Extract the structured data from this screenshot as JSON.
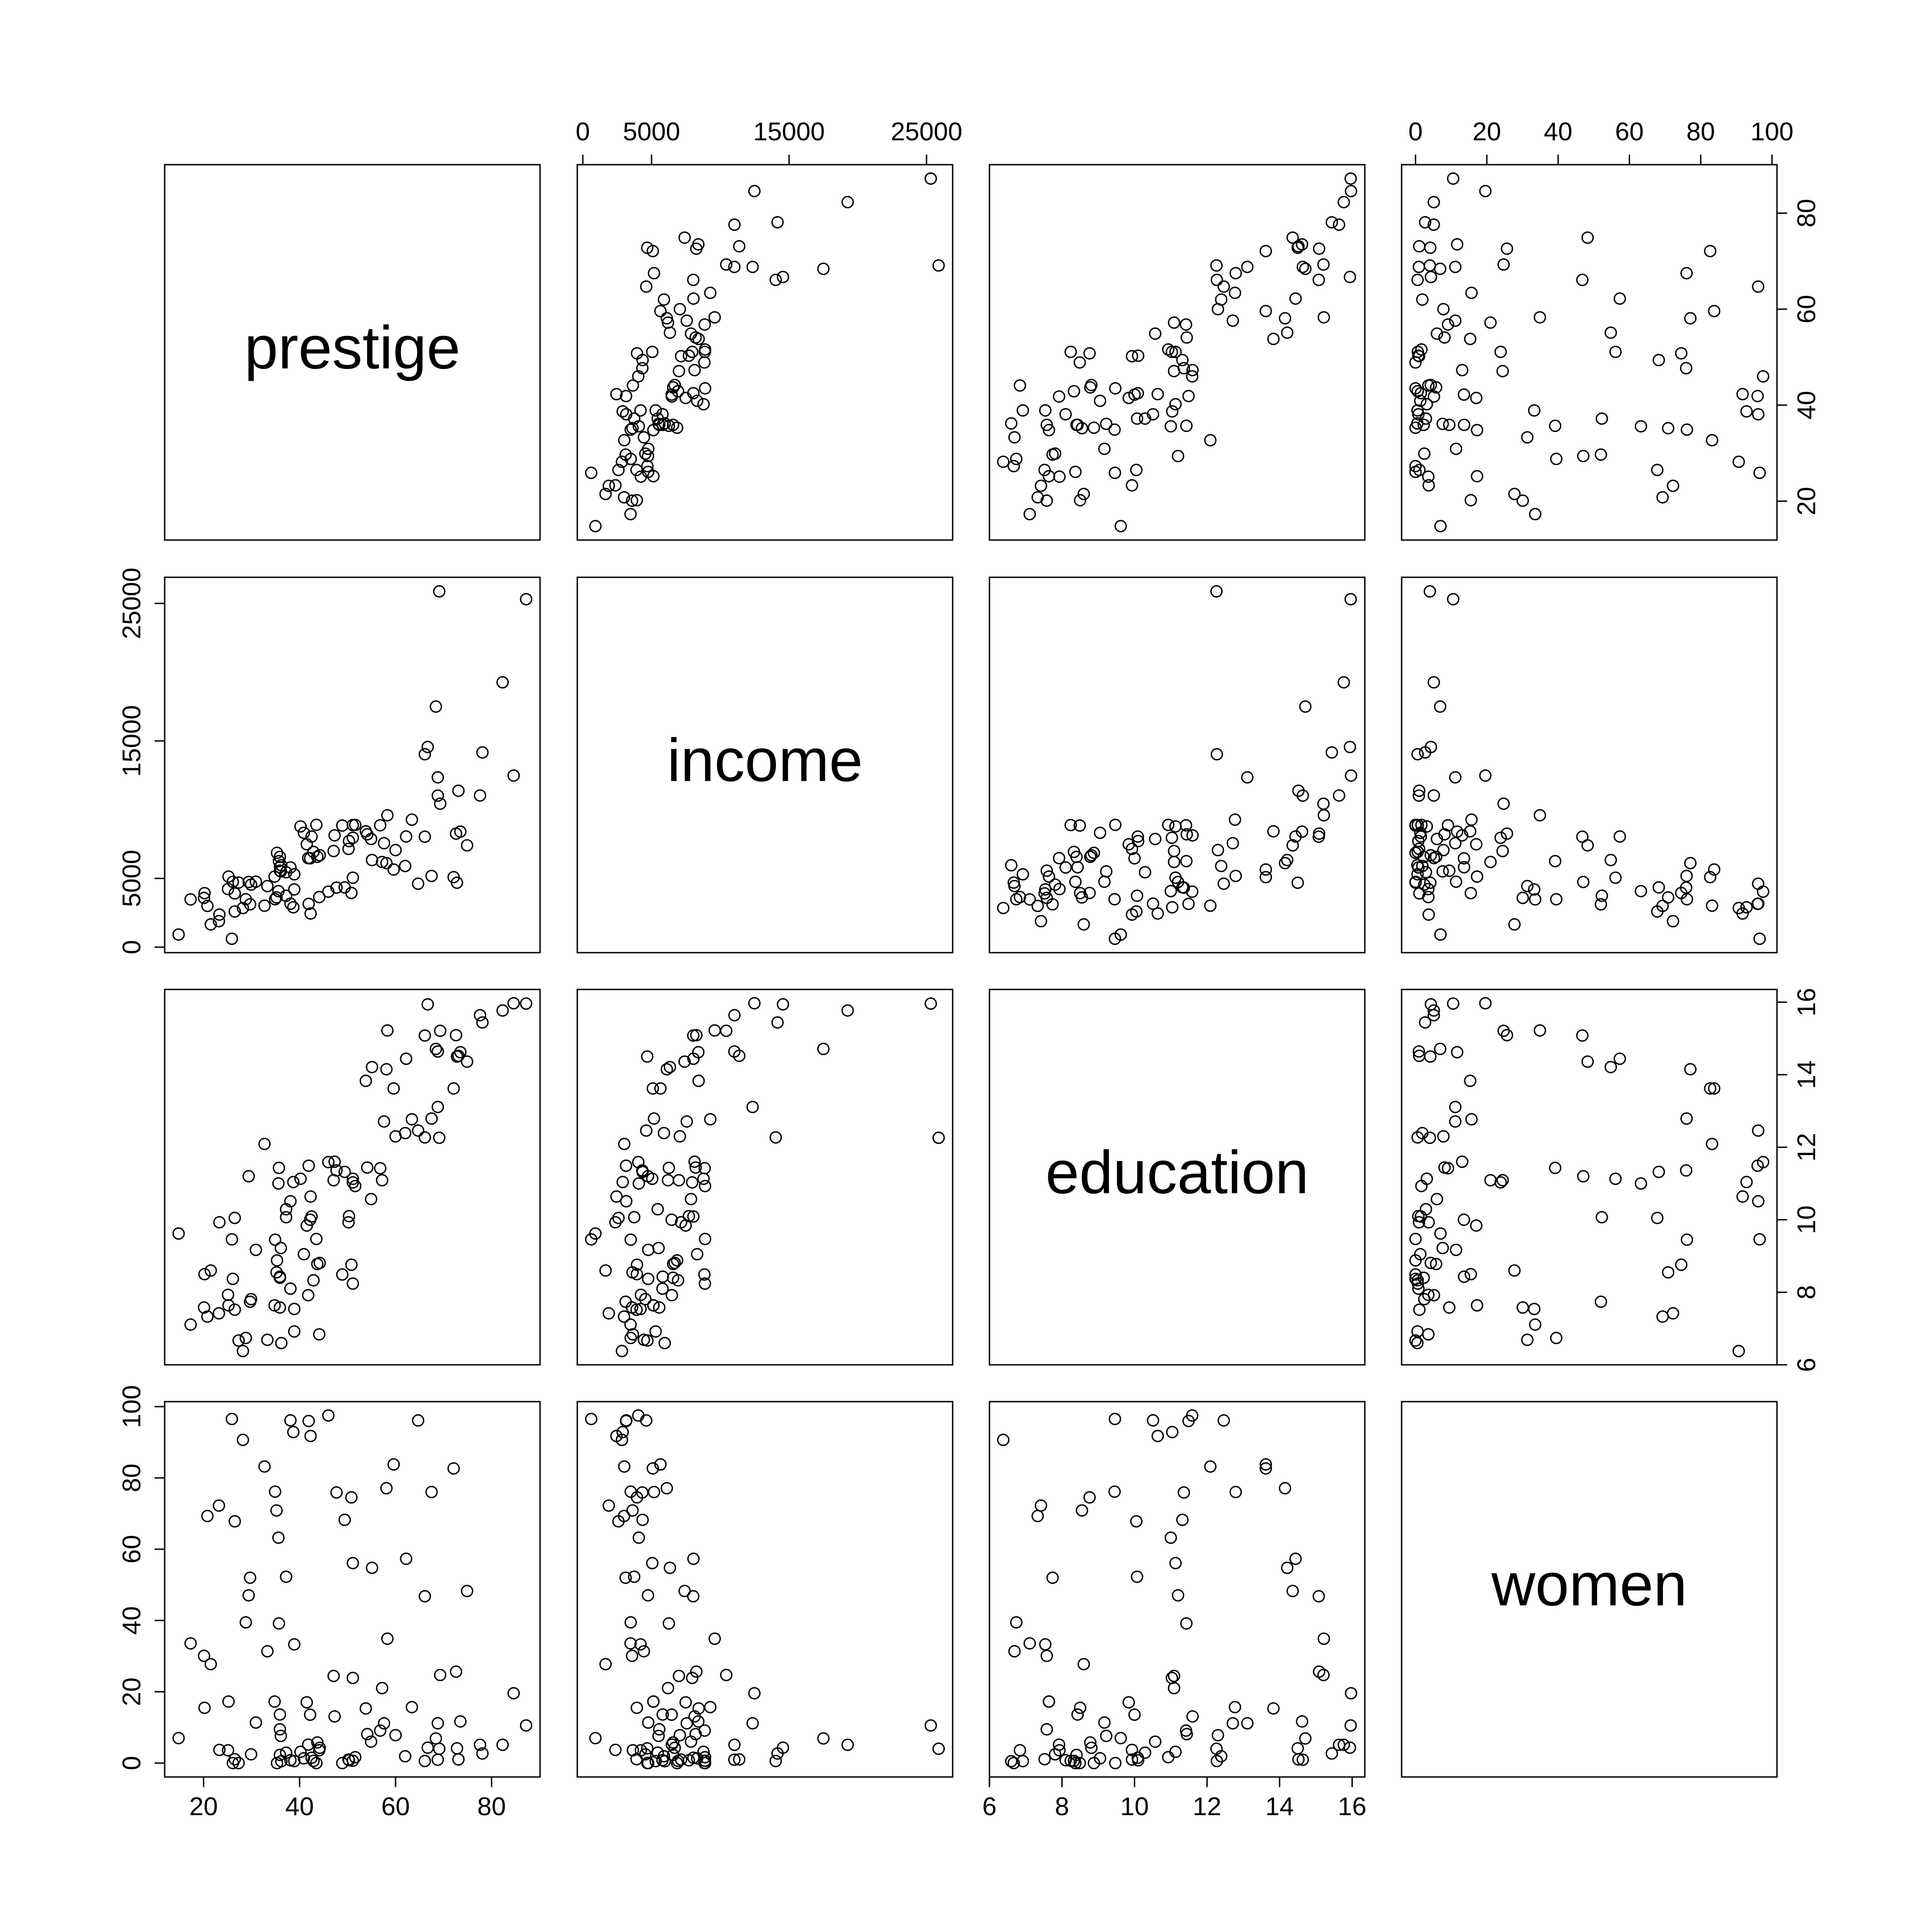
{
  "chart_data": {
    "type": "pairs",
    "variables": [
      {
        "name": "prestige",
        "lim": [
          11.9,
          90.1
        ],
        "ticks": [
          20,
          40,
          60,
          80
        ],
        "values": [
          68.8,
          69.1,
          63.4,
          56.8,
          73.5,
          77.6,
          72.6,
          78.1,
          73.1,
          68.8,
          62.0,
          60.0,
          53.8,
          62.2,
          74.9,
          55.1,
          82.3,
          58.1,
          58.3,
          72.8,
          84.6,
          59.6,
          66.1,
          87.2,
          66.7,
          68.4,
          64.7,
          34.9,
          72.1,
          69.3,
          67.5,
          57.2,
          57.6,
          54.1,
          46.0,
          41.9,
          49.4,
          42.3,
          47.7,
          30.9,
          32.7,
          38.7,
          36.1,
          37.2,
          38.1,
          29.4,
          51.1,
          35.7,
          35.6,
          41.5,
          40.2,
          26.5,
          14.8,
          23.3,
          47.3,
          47.1,
          51.1,
          43.5,
          51.6,
          29.7,
          20.2,
          54.9,
          25.9,
          20.8,
          17.3,
          20.1,
          44.1,
          21.5,
          35.3,
          38.9,
          25.2,
          34.8,
          23.2,
          33.3,
          28.8,
          42.5,
          44.2,
          35.9,
          41.8,
          35.9,
          43.7,
          50.8,
          37.2,
          28.2,
          38.1,
          50.3,
          27.3,
          40.9,
          50.2,
          51.1,
          38.9,
          36.2,
          29.9,
          42.9,
          26.5,
          66.1,
          48.9,
          35.9,
          25.1,
          26.1,
          42.2,
          35.2
        ]
      },
      {
        "name": "income",
        "lim": [
          -400,
          26900
        ],
        "ticks": [
          0,
          5000,
          15000,
          25000
        ],
        "values": [
          12351,
          25879,
          9271,
          8865,
          8403,
          11030,
          8258,
          14163,
          11377,
          11023,
          5902,
          7059,
          8425,
          8049,
          7405,
          6336,
          19263,
          6112,
          9593,
          4686,
          12480,
          5648,
          8034,
          25308,
          14558,
          17498,
          4614,
          3485,
          5092,
          10432,
          5180,
          6197,
          7562,
          8206,
          4036,
          3148,
          4348,
          2448,
          4330,
          4761,
          3016,
          2901,
          5511,
          3739,
          3161,
          4741,
          5052,
          6259,
          4075,
          7482,
          8780,
          2594,
          918,
          2370,
          8131,
          6992,
          7956,
          8895,
          8891,
          3116,
          3930,
          7869,
          611,
          3000,
          3472,
          3582,
          3643,
          1656,
          6860,
          4199,
          5134,
          5134,
          1890,
          4443,
          3485,
          8043,
          6686,
          6565,
          6477,
          5811,
          6573,
          3942,
          5449,
          2847,
          5795,
          7716,
          4696,
          8316,
          7147,
          8880,
          5299,
          5959,
          4549,
          6928,
          3910,
          14032,
          8845,
          5562,
          4224,
          4753,
          6462,
          3617
        ]
      },
      {
        "name": "education",
        "lim": [
          6.0,
          16.35
        ],
        "ticks": [
          6,
          8,
          10,
          12,
          14,
          16
        ],
        "values": [
          13.11,
          12.26,
          12.77,
          11.42,
          14.62,
          15.64,
          15.09,
          15.44,
          14.52,
          14.64,
          12.39,
          12.3,
          13.83,
          14.44,
          14.36,
          14.21,
          15.77,
          14.15,
          15.22,
          14.5,
          15.97,
          13.62,
          15.08,
          15.96,
          15.94,
          14.71,
          12.46,
          9.45,
          13.62,
          15.21,
          12.79,
          11.09,
          12.71,
          11.44,
          11.59,
          11.49,
          11.32,
          10.64,
          11.36,
          9.17,
          12.09,
          11.04,
          9.22,
          10.07,
          10.51,
          11.2,
          11.13,
          11.43,
          11.0,
          9.84,
          11.13,
          10.05,
          9.62,
          9.93,
          11.6,
          11.09,
          11.03,
          9.47,
          10.93,
          7.74,
          8.5,
          10.57,
          9.46,
          7.33,
          7.11,
          7.58,
          6.84,
          8.6,
          8.88,
          7.54,
          7.64,
          7.64,
          7.42,
          6.69,
          6.74,
          10.09,
          8.81,
          8.4,
          7.92,
          8.43,
          8.78,
          8.76,
          10.29,
          6.38,
          8.1,
          10.1,
          6.67,
          9.05,
          9.93,
          8.24,
          6.92,
          6.6,
          7.81,
          8.33,
          7.52,
          12.27,
          8.49,
          7.58,
          7.93,
          8.37,
          10.0,
          8.55
        ]
      },
      {
        "name": "women",
        "lim": [
          -3.9,
          101.4
        ],
        "ticks": [
          0,
          20,
          40,
          60,
          80,
          100
        ],
        "values": [
          11.16,
          4.02,
          15.7,
          9.11,
          11.68,
          5.13,
          25.65,
          2.69,
          1.03,
          0.94,
          1.91,
          7.83,
          15.33,
          57.31,
          48.28,
          54.77,
          5.13,
          77.1,
          34.89,
          4.14,
          19.59,
          83.78,
          46.8,
          10.56,
          4.32,
          6.91,
          96.12,
          76.14,
          82.66,
          24.71,
          76.04,
          21.03,
          11.15,
          8.13,
          97.51,
          95.97,
          68.24,
          91.76,
          75.92,
          11.37,
          83.19,
          92.86,
          7.62,
          52.27,
          96.14,
          47.06,
          56.1,
          39.17,
          63.23,
          17.04,
          3.16,
          67.82,
          7.0,
          3.69,
          13.09,
          24.44,
          23.88,
          0.0,
          1.65,
          52.0,
          15.51,
          6.01,
          96.53,
          69.31,
          33.57,
          30.08,
          3.6,
          27.75,
          0.0,
          33.3,
          17.26,
          17.26,
          72.24,
          31.36,
          39.48,
          1.5,
          4.28,
          2.3,
          5.17,
          13.62,
          5.78,
          74.54,
          2.92,
          90.67,
          0.81,
          0.78,
          0.0,
          1.34,
          0.99,
          0.65,
          0.56,
          0.52,
          2.46,
          0.61,
          1.09,
          0.58,
          0.0,
          9.47,
          3.59,
          0.0,
          13.58,
          70.87
        ]
      }
    ]
  }
}
